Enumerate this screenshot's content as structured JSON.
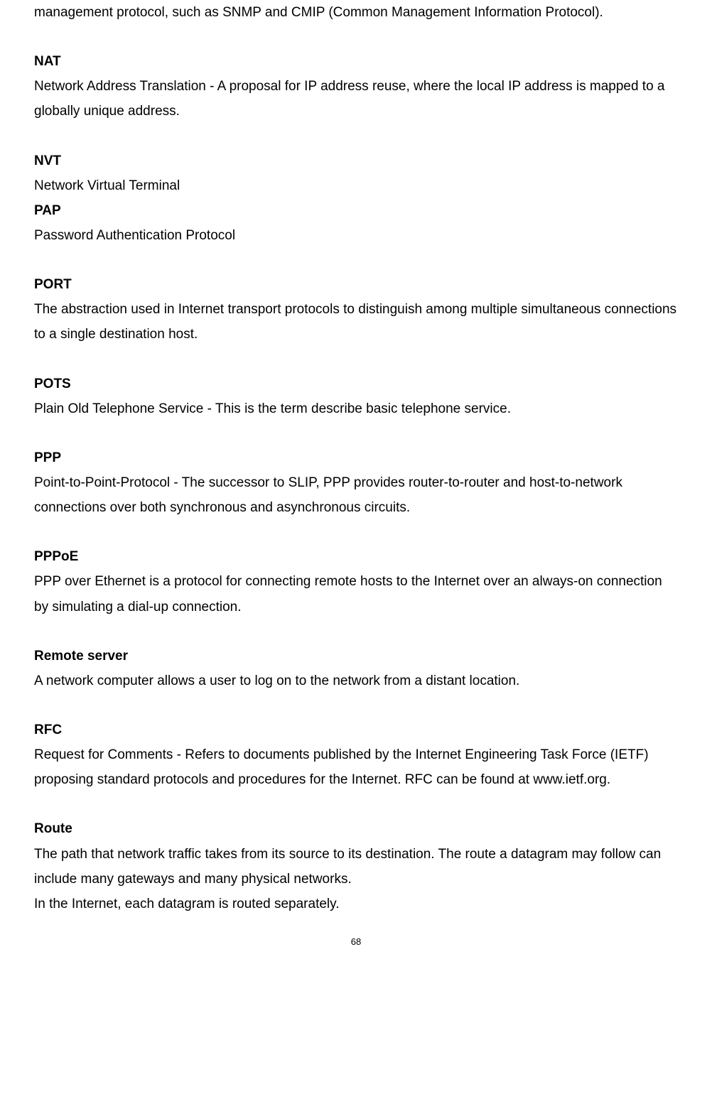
{
  "intro": "management protocol, such as SNMP and CMIP (Common Management Information Protocol).",
  "entries": {
    "nat": {
      "term": "NAT",
      "def": "Network Address Translation - A proposal for IP address reuse, where the local IP address is mapped to a globally unique address."
    },
    "nvt": {
      "term": "NVT",
      "def": "Network Virtual Terminal"
    },
    "pap": {
      "term": "PAP",
      "def": "Password Authentication Protocol"
    },
    "port": {
      "term": "PORT",
      "def": "The abstraction used in Internet transport protocols to distinguish among multiple simultaneous connections to a single destination host."
    },
    "pots": {
      "term": "POTS",
      "def": "Plain Old Telephone Service - This is the term describe basic telephone service."
    },
    "ppp": {
      "term": "PPP",
      "def": "Point-to-Point-Protocol - The successor to SLIP, PPP provides router-to-router and host-to-network connections over both synchronous and asynchronous circuits."
    },
    "pppoe": {
      "term": "PPPoE",
      "def": "PPP over Ethernet is a protocol for connecting remote hosts to the Internet over an always-on connection by simulating a dial-up connection."
    },
    "remote": {
      "term": "Remote server",
      "def": "A network computer allows a user to log on to the network from a distant location."
    },
    "rfc": {
      "term": "RFC",
      "def": "Request for Comments - Refers to documents published by the Internet Engineering Task Force (IETF) proposing standard protocols and procedures for the Internet. RFC can be found at www.ietf.org."
    },
    "route": {
      "term": "Route",
      "def1": "The path that network traffic takes from its source to its destination. The route a datagram may follow can include many gateways and many physical networks.",
      "def2": "In the Internet, each datagram is routed separately."
    }
  },
  "page_number": "68",
  "style": {
    "font_family": "Arial",
    "font_size_pt": 14,
    "line_height": 1.85,
    "text_color": "#000000",
    "background_color": "#ffffff",
    "page_num_fontsize_pt": 10
  }
}
